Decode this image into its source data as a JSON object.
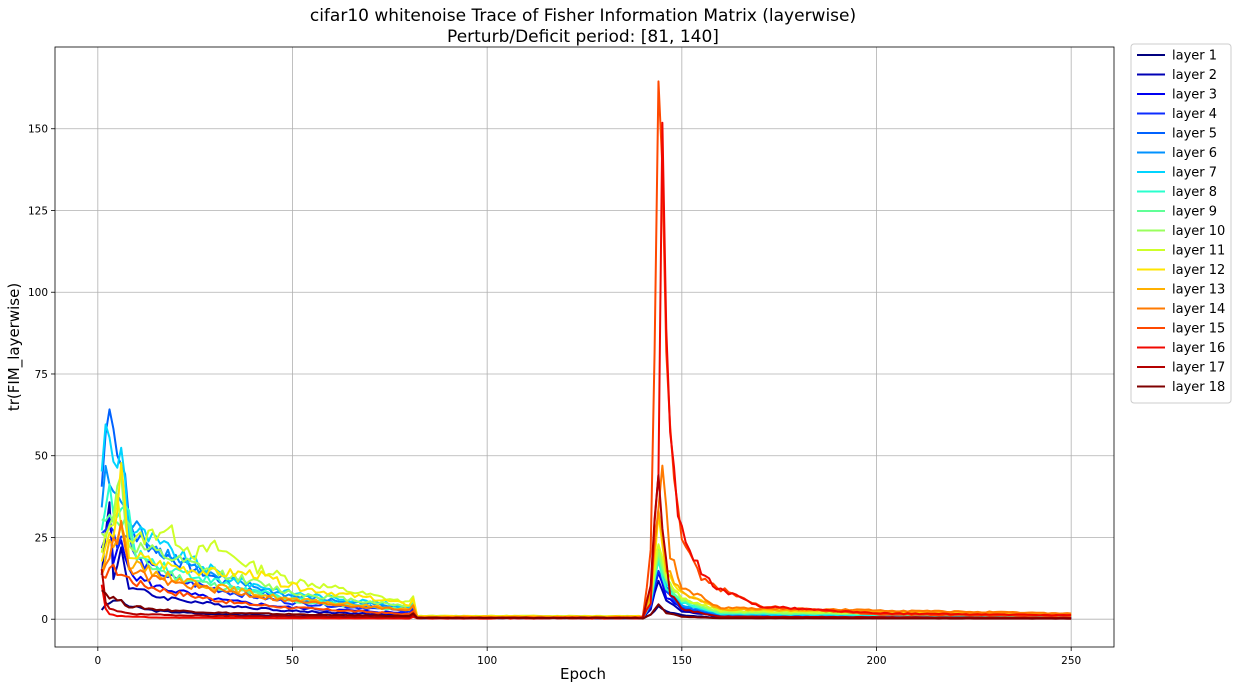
{
  "chart_data": {
    "type": "line",
    "title_line1": "cifar10 whitenoise Trace of Fisher Information Matrix (layerwise)",
    "title_line2": "Perturb/Deficit period: [81, 140]",
    "xlabel": "Epoch",
    "ylabel": "tr(FIM_layerwise)",
    "xlim": [
      -11,
      261
    ],
    "ylim": [
      -8.5,
      175
    ],
    "xticks": [
      0,
      50,
      100,
      150,
      200,
      250
    ],
    "yticks": [
      0,
      25,
      50,
      75,
      100,
      125,
      150
    ],
    "grid": true,
    "legend_position": "outside-right",
    "series": [
      {
        "name": "layer 1",
        "color": "#00007f",
        "early": [
          [
            1,
            3
          ],
          [
            3,
            5
          ],
          [
            5,
            6
          ],
          [
            8,
            4
          ],
          [
            15,
            2.5
          ],
          [
            30,
            1.5
          ],
          [
            50,
            1
          ],
          [
            80,
            0.5
          ]
        ],
        "spike": [
          [
            140,
            0.3
          ],
          [
            142,
            1.5
          ],
          [
            144,
            4
          ],
          [
            146,
            2.5
          ],
          [
            150,
            1.2
          ],
          [
            160,
            0.4
          ]
        ]
      },
      {
        "name": "layer 2",
        "color": "#0000b5",
        "early": [
          [
            1,
            15
          ],
          [
            3,
            35
          ],
          [
            4,
            12
          ],
          [
            6,
            22
          ],
          [
            8,
            10
          ],
          [
            15,
            7
          ],
          [
            30,
            4.5
          ],
          [
            50,
            2.5
          ],
          [
            80,
            1.2
          ]
        ],
        "spike": [
          [
            140,
            0.3
          ],
          [
            142,
            3
          ],
          [
            144,
            12
          ],
          [
            146,
            6
          ],
          [
            150,
            2.5
          ],
          [
            160,
            0.8
          ]
        ]
      },
      {
        "name": "layer 3",
        "color": "#0000f1",
        "early": [
          [
            1,
            20
          ],
          [
            3,
            30
          ],
          [
            4,
            17
          ],
          [
            6,
            27
          ],
          [
            8,
            14
          ],
          [
            15,
            10
          ],
          [
            30,
            6
          ],
          [
            50,
            3.5
          ],
          [
            80,
            1.8
          ]
        ],
        "spike": [
          [
            140,
            0.4
          ],
          [
            142,
            4
          ],
          [
            144,
            15
          ],
          [
            146,
            7
          ],
          [
            150,
            3
          ],
          [
            160,
            1
          ]
        ]
      },
      {
        "name": "layer 4",
        "color": "#0d2dff",
        "early": [
          [
            1,
            25
          ],
          [
            3,
            32
          ],
          [
            5,
            22
          ],
          [
            7,
            28
          ],
          [
            10,
            18
          ],
          [
            20,
            12
          ],
          [
            35,
            8
          ],
          [
            50,
            5
          ],
          [
            80,
            2.5
          ]
        ],
        "spike": [
          [
            140,
            0.4
          ],
          [
            142,
            4
          ],
          [
            144,
            16
          ],
          [
            146,
            8
          ],
          [
            150,
            3.5
          ],
          [
            160,
            1.2
          ]
        ]
      },
      {
        "name": "layer 5",
        "color": "#0062ff",
        "early": [
          [
            1,
            40
          ],
          [
            2,
            62
          ],
          [
            3,
            68
          ],
          [
            5,
            50
          ],
          [
            6,
            52
          ],
          [
            8,
            30
          ],
          [
            10,
            25
          ],
          [
            20,
            18
          ],
          [
            35,
            10
          ],
          [
            50,
            6
          ],
          [
            80,
            3
          ]
        ],
        "spike": [
          [
            140,
            0.5
          ],
          [
            142,
            5
          ],
          [
            144,
            18
          ],
          [
            146,
            9
          ],
          [
            150,
            4
          ],
          [
            160,
            1.3
          ]
        ]
      },
      {
        "name": "layer 6",
        "color": "#0092ff",
        "early": [
          [
            1,
            35
          ],
          [
            2,
            43
          ],
          [
            4,
            40
          ],
          [
            6,
            35
          ],
          [
            8,
            30
          ],
          [
            15,
            22
          ],
          [
            30,
            13
          ],
          [
            50,
            7
          ],
          [
            80,
            3.5
          ]
        ],
        "spike": [
          [
            140,
            0.5
          ],
          [
            142,
            5
          ],
          [
            144,
            20
          ],
          [
            146,
            10
          ],
          [
            150,
            4.5
          ],
          [
            160,
            1.5
          ]
        ]
      },
      {
        "name": "layer 7",
        "color": "#00d4ff",
        "early": [
          [
            1,
            48
          ],
          [
            2,
            57
          ],
          [
            4,
            50
          ],
          [
            5,
            45
          ],
          [
            6,
            57
          ],
          [
            8,
            27
          ],
          [
            10,
            27
          ],
          [
            20,
            20
          ],
          [
            35,
            12
          ],
          [
            50,
            8
          ],
          [
            80,
            4
          ]
        ],
        "spike": [
          [
            140,
            0.5
          ],
          [
            142,
            6
          ],
          [
            144,
            22
          ],
          [
            146,
            11
          ],
          [
            150,
            5
          ],
          [
            160,
            1.6
          ]
        ]
      },
      {
        "name": "layer 8",
        "color": "#29ffce",
        "early": [
          [
            1,
            30
          ],
          [
            3,
            38
          ],
          [
            5,
            30
          ],
          [
            7,
            35
          ],
          [
            10,
            20
          ],
          [
            20,
            15
          ],
          [
            35,
            10
          ],
          [
            50,
            6
          ],
          [
            80,
            3
          ]
        ],
        "spike": [
          [
            140,
            0.5
          ],
          [
            142,
            5
          ],
          [
            144,
            18
          ],
          [
            146,
            10
          ],
          [
            150,
            5
          ],
          [
            160,
            1.8
          ]
        ]
      },
      {
        "name": "layer 9",
        "color": "#60ff97",
        "early": [
          [
            1,
            28
          ],
          [
            3,
            35
          ],
          [
            5,
            28
          ],
          [
            7,
            32
          ],
          [
            10,
            18
          ],
          [
            20,
            13
          ],
          [
            35,
            9
          ],
          [
            50,
            5.5
          ],
          [
            80,
            2.8
          ]
        ],
        "spike": [
          [
            140,
            0.6
          ],
          [
            142,
            6
          ],
          [
            144,
            20
          ],
          [
            146,
            11
          ],
          [
            150,
            5.5
          ],
          [
            160,
            2
          ]
        ]
      },
      {
        "name": "layer 10",
        "color": "#9aff5d",
        "early": [
          [
            1,
            25
          ],
          [
            3,
            30
          ],
          [
            5,
            38
          ],
          [
            6,
            42
          ],
          [
            8,
            22
          ],
          [
            10,
            22
          ],
          [
            20,
            18
          ],
          [
            35,
            13
          ],
          [
            50,
            8
          ],
          [
            80,
            4
          ]
        ],
        "spike": [
          [
            140,
            0.6
          ],
          [
            142,
            6
          ],
          [
            144,
            22
          ],
          [
            146,
            12
          ],
          [
            150,
            6
          ],
          [
            160,
            2.2
          ]
        ]
      },
      {
        "name": "layer 11",
        "color": "#ceff29",
        "early": [
          [
            1,
            20
          ],
          [
            3,
            28
          ],
          [
            5,
            35
          ],
          [
            7,
            25
          ],
          [
            10,
            24
          ],
          [
            17,
            28
          ],
          [
            25,
            20
          ],
          [
            30,
            22
          ],
          [
            40,
            16
          ],
          [
            50,
            12
          ],
          [
            80,
            5
          ]
        ],
        "spike": [
          [
            140,
            0.6
          ],
          [
            142,
            7
          ],
          [
            144,
            25
          ],
          [
            146,
            13
          ],
          [
            150,
            6.5
          ],
          [
            160,
            2.5
          ]
        ]
      },
      {
        "name": "layer 12",
        "color": "#ffe600",
        "early": [
          [
            1,
            18
          ],
          [
            3,
            25
          ],
          [
            5,
            30
          ],
          [
            6,
            45
          ],
          [
            8,
            20
          ],
          [
            15,
            17
          ],
          [
            30,
            14
          ],
          [
            40,
            14
          ],
          [
            50,
            10
          ],
          [
            80,
            4.5
          ]
        ],
        "spike": [
          [
            140,
            0.6
          ],
          [
            142,
            8
          ],
          [
            144,
            30
          ],
          [
            146,
            15
          ],
          [
            150,
            8
          ],
          [
            160,
            3
          ]
        ]
      },
      {
        "name": "layer 13",
        "color": "#ffb000",
        "early": [
          [
            1,
            15
          ],
          [
            3,
            22
          ],
          [
            6,
            30
          ],
          [
            8,
            17
          ],
          [
            15,
            14
          ],
          [
            30,
            10
          ],
          [
            50,
            6
          ],
          [
            80,
            3
          ]
        ],
        "spike": [
          [
            140,
            0.7
          ],
          [
            142,
            8
          ],
          [
            144,
            32
          ],
          [
            146,
            16
          ],
          [
            150,
            8
          ],
          [
            160,
            3
          ]
        ]
      },
      {
        "name": "layer 14",
        "color": "#ff7a00",
        "early": [
          [
            1,
            15
          ],
          [
            3,
            20
          ],
          [
            6,
            28
          ],
          [
            8,
            15
          ],
          [
            15,
            12
          ],
          [
            30,
            9
          ],
          [
            50,
            5.5
          ],
          [
            80,
            2.8
          ]
        ],
        "spike": [
          [
            140,
            0.8
          ],
          [
            142,
            10
          ],
          [
            145,
            45
          ],
          [
            147,
            20
          ],
          [
            150,
            10
          ],
          [
            160,
            3.5
          ]
        ]
      },
      {
        "name": "layer 15",
        "color": "#ff4800",
        "early": [
          [
            1,
            12
          ],
          [
            3,
            16
          ],
          [
            6,
            14
          ],
          [
            10,
            11
          ],
          [
            20,
            8
          ],
          [
            35,
            5
          ],
          [
            50,
            3.5
          ],
          [
            80,
            1.5
          ]
        ],
        "spike": [
          [
            140,
            1
          ],
          [
            142,
            20
          ],
          [
            143,
            80
          ],
          [
            144,
            166
          ],
          [
            145,
            130
          ],
          [
            146,
            80
          ],
          [
            148,
            40
          ],
          [
            150,
            25
          ],
          [
            155,
            12
          ],
          [
            170,
            4
          ],
          [
            200,
            1.5
          ],
          [
            250,
            1
          ]
        ]
      },
      {
        "name": "layer 16",
        "color": "#f10800",
        "early": [
          [
            1,
            10
          ],
          [
            2,
            3
          ],
          [
            3,
            1.5
          ],
          [
            5,
            1
          ],
          [
            15,
            0.5
          ],
          [
            50,
            0.3
          ],
          [
            80,
            0.2
          ]
        ],
        "spike": [
          [
            140,
            0.5
          ],
          [
            142,
            5
          ],
          [
            143,
            30
          ],
          [
            144,
            46
          ],
          [
            145,
            140
          ],
          [
            146,
            90
          ],
          [
            147,
            55
          ],
          [
            149,
            32
          ],
          [
            152,
            20
          ],
          [
            158,
            10
          ],
          [
            170,
            4
          ],
          [
            200,
            1.8
          ],
          [
            250,
            1.2
          ]
        ]
      },
      {
        "name": "layer 17",
        "color": "#b40000",
        "early": [
          [
            1,
            15
          ],
          [
            2,
            5
          ],
          [
            3,
            3
          ],
          [
            10,
            1.5
          ],
          [
            30,
            1
          ],
          [
            50,
            0.8
          ],
          [
            80,
            0.6
          ]
        ],
        "spike": [
          [
            140,
            0.5
          ],
          [
            142,
            10
          ],
          [
            143,
            32
          ],
          [
            144,
            47
          ],
          [
            145,
            30
          ],
          [
            147,
            8
          ],
          [
            150,
            3
          ],
          [
            160,
            0.8
          ]
        ]
      },
      {
        "name": "layer 18",
        "color": "#7f0000",
        "early": [
          [
            1,
            9
          ],
          [
            3,
            7
          ],
          [
            5,
            6
          ],
          [
            8,
            4
          ],
          [
            15,
            3
          ],
          [
            30,
            2
          ],
          [
            50,
            1.5
          ],
          [
            80,
            1
          ]
        ],
        "spike": [
          [
            140,
            0.2
          ],
          [
            142,
            1.5
          ],
          [
            144,
            5
          ],
          [
            146,
            2
          ],
          [
            150,
            0.8
          ],
          [
            160,
            0.3
          ]
        ]
      }
    ]
  }
}
